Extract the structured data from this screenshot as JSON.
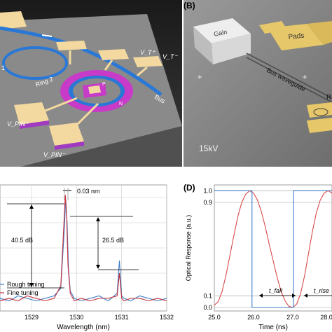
{
  "panelA": {
    "labels": {
      "vt_plus": "V_T⁺",
      "vt_minus": "V_T⁻",
      "ring1": "1",
      "ring2": "Ring 2",
      "bus": "Bus",
      "p": "P",
      "n": "N",
      "vpin_plus": "V_PIN⁺",
      "vpin_minus": "V_PIN⁻"
    }
  },
  "panelB": {
    "panel_label": "(B)",
    "gain": "Gain",
    "pads": "Pads",
    "bus_waveguide": "Bus waveguide",
    "r_partial": "R",
    "scale": "15kV"
  },
  "panelC": {
    "xlabel": "Wavelength (nm)",
    "annotations": {
      "res": "0.03 nm",
      "peak1": "40.5 dB",
      "peak2": "26.5 dB"
    },
    "legend": [
      "Rough tuning",
      "Fine tuning"
    ]
  },
  "panelD": {
    "panel_label": "(D)",
    "ylabel": "Optical Response (a.u.)",
    "xlabel": "Time (ns)",
    "t_fall": "t_fall",
    "t_rise": "t_rise"
  },
  "chart_data": [
    {
      "type": "line",
      "xlabel": "Wavelength (nm)",
      "ylabel": "",
      "x_ticks": [
        1529,
        1530,
        1531,
        1532
      ],
      "xlim": [
        1528.3,
        1532
      ],
      "series": [
        {
          "name": "Rough tuning",
          "color": "#3d7ec7",
          "x": [
            1528.3,
            1528.5,
            1528.7,
            1528.9,
            1529.1,
            1529.3,
            1529.5,
            1529.65,
            1529.72,
            1529.76,
            1529.79,
            1529.82,
            1529.86,
            1529.95,
            1530.1,
            1530.3,
            1530.5,
            1530.7,
            1530.9,
            1530.95,
            1531.0,
            1531.05,
            1531.2,
            1531.4,
            1531.6,
            1531.8,
            1532.0
          ],
          "y": [
            -60,
            -61,
            -59,
            -60,
            -61,
            -60,
            -59,
            -56,
            -35,
            -21,
            -30,
            -48,
            -57,
            -60,
            -61,
            -60,
            -59,
            -61,
            -58,
            -45,
            -59,
            -60,
            -61,
            -59,
            -60,
            -61,
            -60
          ]
        },
        {
          "name": "Fine tuning",
          "color": "#c8313c",
          "x": [
            1528.3,
            1528.5,
            1528.7,
            1528.9,
            1529.1,
            1529.3,
            1529.5,
            1529.65,
            1529.72,
            1529.75,
            1529.78,
            1529.81,
            1529.86,
            1529.95,
            1530.1,
            1530.3,
            1530.5,
            1530.7,
            1530.9,
            1530.95,
            1531.0,
            1531.05,
            1531.2,
            1531.4,
            1531.6,
            1531.8,
            1532.0
          ],
          "y": [
            -61,
            -60,
            -61,
            -59,
            -60,
            -61,
            -60,
            -55,
            -30,
            -19,
            -28,
            -47,
            -58,
            -61,
            -60,
            -61,
            -60,
            -60,
            -59,
            -50,
            -60,
            -61,
            -60,
            -60,
            -61,
            -60,
            -61
          ]
        }
      ]
    },
    {
      "type": "line",
      "xlabel": "Time (ns)",
      "ylabel": "Optical Response (a.u.)",
      "xlim": [
        25.0,
        28.0
      ],
      "ylim": [
        -0.03,
        1.05
      ],
      "x_ticks": [
        25.0,
        26.0,
        27.0,
        28.0
      ],
      "y_ticks": [
        0.0,
        0.1,
        0.9,
        1.0
      ],
      "series": [
        {
          "name": "",
          "color": "#d94a4a",
          "x": [
            25.0,
            25.1,
            25.2,
            25.3,
            25.4,
            25.5,
            25.6,
            25.7,
            25.8,
            25.9,
            26.0,
            26.1,
            26.2,
            26.3,
            26.4,
            26.5,
            26.6,
            26.7,
            26.8,
            26.9,
            27.0,
            27.1,
            27.2,
            27.3,
            27.4,
            27.5,
            27.6,
            27.7,
            27.8,
            27.9,
            28.0
          ],
          "y": [
            0.02,
            0.05,
            0.14,
            0.28,
            0.45,
            0.62,
            0.78,
            0.9,
            0.97,
            1.0,
            0.98,
            0.92,
            0.82,
            0.69,
            0.54,
            0.4,
            0.26,
            0.14,
            0.06,
            0.01,
            0.0,
            0.03,
            0.12,
            0.27,
            0.46,
            0.65,
            0.81,
            0.92,
            0.98,
            1.0,
            0.98
          ]
        },
        {
          "name": "",
          "color": "#3d7ec7",
          "x": [
            25.0,
            25.96,
            25.96,
            27.02,
            27.02,
            28.0
          ],
          "y": [
            1.0,
            1.0,
            0.0,
            0.0,
            1.0,
            1.0
          ]
        }
      ]
    }
  ]
}
